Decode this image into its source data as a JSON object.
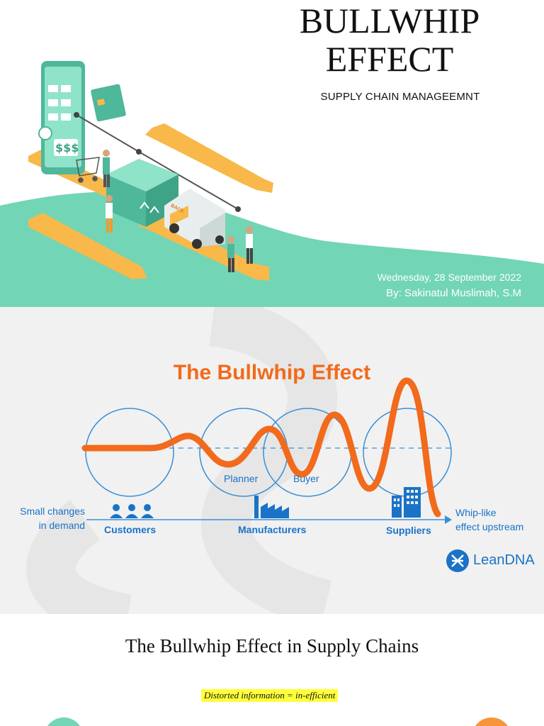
{
  "slide1": {
    "title_line1": "BULLWHIP",
    "title_line2": "EFFECT",
    "subtitle": "SUPPLY CHAIN MANAGEEMNT",
    "date": "Wednesday, 28 September 2022",
    "author": "By: Sakinatul Muslimah, S.M",
    "colors": {
      "teal": "#72d5b6",
      "orange": "#f8b84a",
      "box": "#4fb79a"
    },
    "illustration": {
      "phone_screen_text": "$$$",
      "van_text": "BACK"
    }
  },
  "slide2": {
    "title": "The Bullwhip Effect",
    "left_label_line1": "Small changes",
    "left_label_line2": "in demand",
    "right_label_line1": "Whip-like",
    "right_label_line2": "effect upstream",
    "circle_labels": [
      "Planner",
      "Buyer"
    ],
    "axis_labels": [
      "Customers",
      "Manufacturers",
      "Suppliers"
    ],
    "logo_text": "LeanDNA",
    "colors": {
      "orange": "#f26a1b",
      "blue": "#1a73c7",
      "circle": "#3a8fd8"
    },
    "icons": [
      "people-icon",
      "factory-icon",
      "building-icon",
      "leandna-logo-icon"
    ]
  },
  "slide3": {
    "title": "The Bullwhip Effect in Supply Chains",
    "note": "Distorted information = in-efficient",
    "colors": {
      "highlight": "#ffff3c",
      "left_circle": "#72d5b6",
      "right_circle": "#f8943a"
    }
  }
}
